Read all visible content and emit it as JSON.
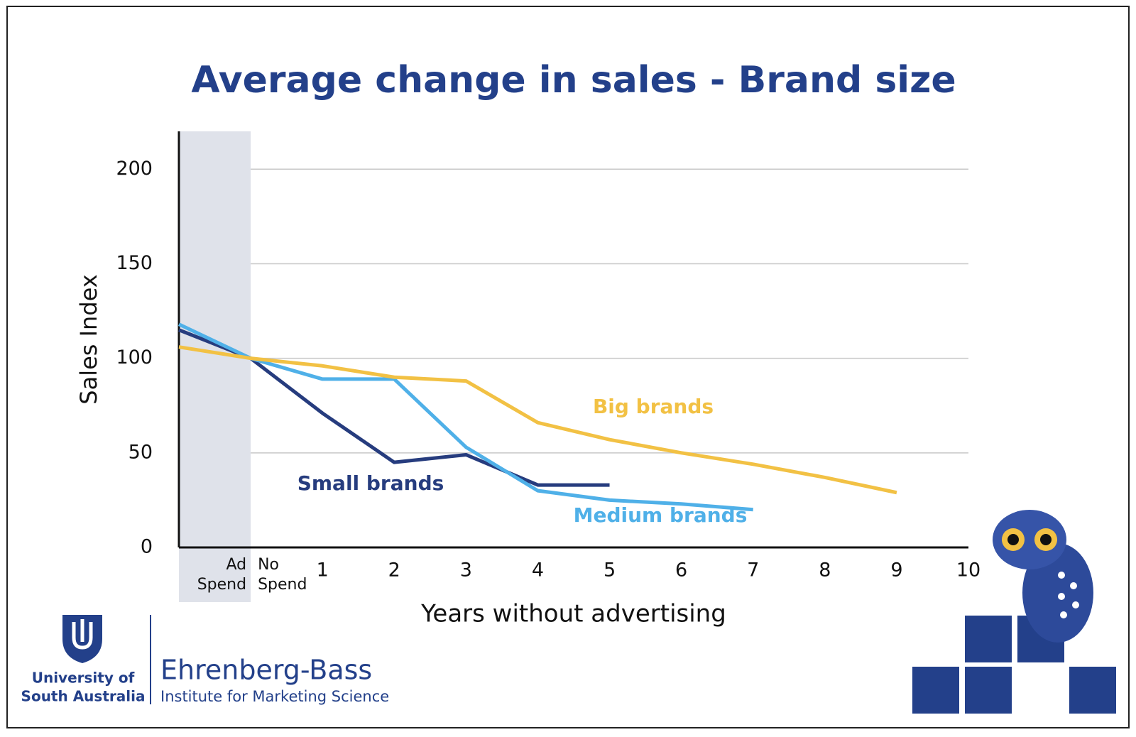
{
  "chart_data": {
    "type": "line",
    "title": "Average change in sales - Brand size",
    "y_label": "Sales Index",
    "x_label": "Years without advertising",
    "x": [
      -1,
      0,
      1,
      2,
      3,
      4,
      5,
      6,
      7,
      8,
      9
    ],
    "series": [
      {
        "name": "Small brands",
        "color": "#263c7e",
        "values": [
          115,
          100,
          71,
          45,
          49,
          33,
          33,
          null,
          null,
          null,
          null
        ]
      },
      {
        "name": "Medium brands",
        "color": "#4fb0e8",
        "values": [
          118,
          100,
          89,
          89,
          53,
          30,
          25,
          23,
          20,
          null,
          null
        ]
      },
      {
        "name": "Big brands",
        "color": "#f2c144",
        "values": [
          106,
          100,
          96,
          90,
          88,
          66,
          57,
          50,
          44,
          37,
          29
        ]
      }
    ],
    "xlim": [
      -1,
      10
    ],
    "xticks": [
      1,
      2,
      3,
      4,
      5,
      6,
      7,
      8,
      9,
      10
    ],
    "ylim": [
      0,
      220
    ],
    "yticks": [
      0,
      50,
      100,
      150,
      200
    ],
    "grid": true,
    "shade_xlim": [
      -1,
      0
    ],
    "ad_spend_label": [
      "Ad",
      "Spend"
    ],
    "no_spend_label": [
      "No",
      "Spend"
    ]
  },
  "logos": {
    "university": [
      "University of",
      "South Australia"
    ],
    "institute_name": "Ehrenberg-Bass",
    "institute_subtitle": "Institute for Marketing Science"
  }
}
